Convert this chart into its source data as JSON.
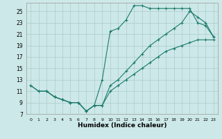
{
  "xlabel": "Humidex (Indice chaleur)",
  "background_color": "#cde8e8",
  "grid_color": "#aacccc",
  "line_color": "#1a7a6a",
  "xlim": [
    -0.5,
    23.5
  ],
  "ylim": [
    7,
    26.5
  ],
  "xticks": [
    0,
    1,
    2,
    3,
    4,
    5,
    6,
    7,
    8,
    9,
    10,
    11,
    12,
    13,
    14,
    15,
    16,
    17,
    18,
    19,
    20,
    21,
    22,
    23
  ],
  "yticks": [
    7,
    9,
    11,
    13,
    15,
    17,
    19,
    21,
    23,
    25
  ],
  "line1_x": [
    0,
    1,
    2,
    3,
    4,
    5,
    6,
    7,
    8,
    9,
    10,
    11,
    12,
    13,
    14,
    15,
    16,
    17,
    18,
    19,
    20,
    21,
    22,
    23
  ],
  "line1_y": [
    12,
    11,
    11,
    10,
    9.5,
    9,
    9,
    7.5,
    8.5,
    13,
    21.5,
    22,
    23.5,
    26,
    26,
    25.5,
    25.5,
    25.5,
    25.5,
    25.5,
    25.5,
    23,
    22.5,
    20.5
  ],
  "line2_x": [
    0,
    1,
    2,
    3,
    4,
    5,
    6,
    7,
    8,
    9,
    10,
    11,
    12,
    13,
    14,
    15,
    16,
    17,
    18,
    19,
    20,
    21,
    22,
    23
  ],
  "line2_y": [
    12,
    11,
    11,
    10,
    9.5,
    9,
    9,
    7.5,
    8.5,
    8.5,
    12,
    13,
    14.5,
    16,
    17.5,
    19,
    20,
    21,
    22,
    23,
    25,
    24,
    23,
    20.5
  ],
  "line3_x": [
    2,
    3,
    4,
    5,
    6,
    7,
    8,
    9,
    10,
    11,
    12,
    13,
    14,
    15,
    16,
    17,
    18,
    19,
    20,
    21,
    22,
    23
  ],
  "line3_y": [
    11,
    10,
    9.5,
    9,
    9,
    7.5,
    8.5,
    8.5,
    11,
    12,
    13,
    14,
    15,
    16,
    17,
    18,
    18.5,
    19,
    19.5,
    20,
    20,
    20
  ]
}
